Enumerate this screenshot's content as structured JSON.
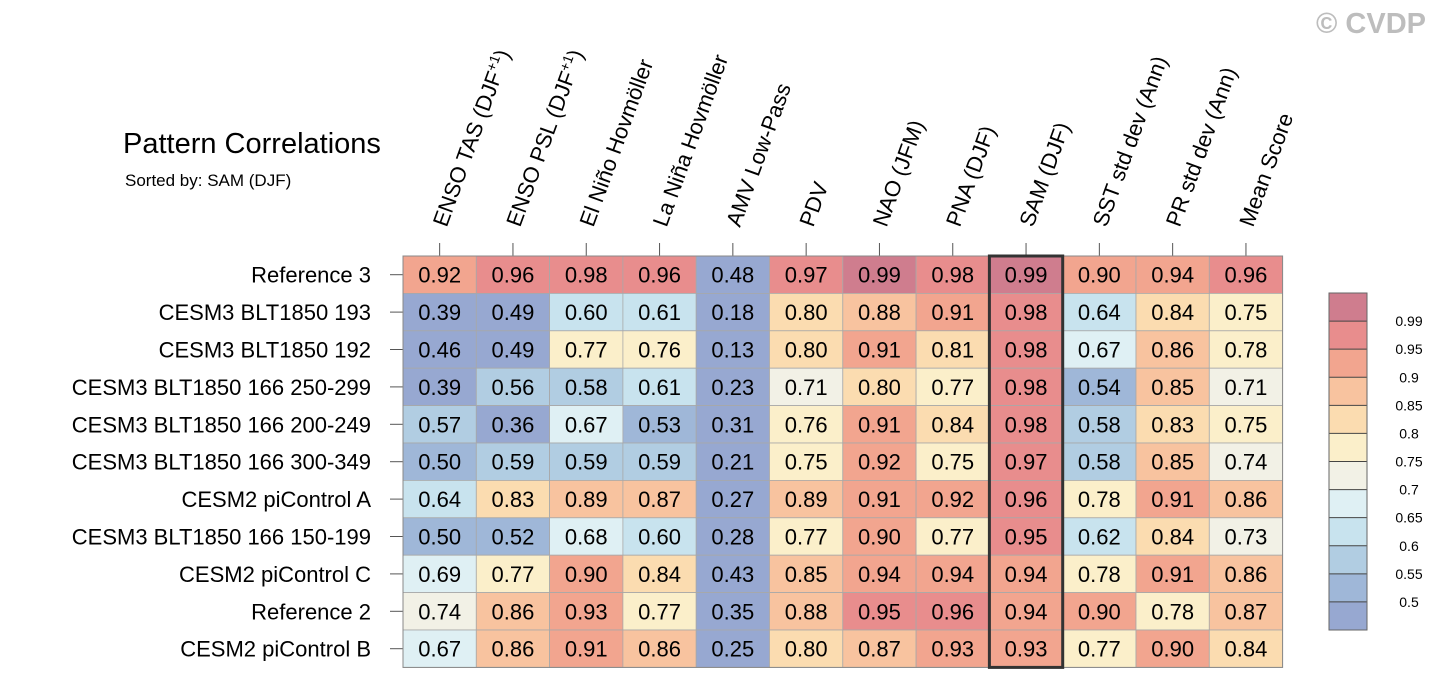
{
  "title": "Pattern Correlations",
  "subtitle": "Sorted by: SAM (DJF)",
  "copyright": "© CVDP",
  "chart_data": {
    "type": "heatmap",
    "title": "Pattern Correlations",
    "subtitle": "Sorted by: SAM (DJF)",
    "columns": [
      "ENSO TAS (DJF+1)",
      "ENSO PSL (DJF+1)",
      "El Niño Hovmöller",
      "La Niña Hovmöller",
      "AMV Low-Pass",
      "PDV",
      "NAO (JFM)",
      "PNA (DJF)",
      "SAM (DJF)",
      "SST std dev (Ann)",
      "PR std dev (Ann)",
      "Mean Score"
    ],
    "highlighted_column": "SAM (DJF)",
    "rows": [
      "Reference 3",
      "CESM3 BLT1850 193",
      "CESM3 BLT1850 192",
      "CESM3 BLT1850 166 250-299",
      "CESM3 BLT1850 166 200-249",
      "CESM3 BLT1850 166 300-349",
      "CESM2 piControl A",
      "CESM3 BLT1850 166 150-199",
      "CESM2 piControl C",
      "Reference 2",
      "CESM2 piControl B"
    ],
    "values": [
      [
        "0.92",
        "0.96",
        "0.98",
        "0.96",
        "0.48",
        "0.97",
        "0.99",
        "0.98",
        "0.99",
        "0.90",
        "0.94",
        "0.96"
      ],
      [
        "0.39",
        "0.49",
        "0.60",
        "0.61",
        "0.18",
        "0.80",
        "0.88",
        "0.91",
        "0.98",
        "0.64",
        "0.84",
        "0.75"
      ],
      [
        "0.46",
        "0.49",
        "0.77",
        "0.76",
        "0.13",
        "0.80",
        "0.91",
        "0.81",
        "0.98",
        "0.67",
        "0.86",
        "0.78"
      ],
      [
        "0.39",
        "0.56",
        "0.58",
        "0.61",
        "0.23",
        "0.71",
        "0.80",
        "0.77",
        "0.98",
        "0.54",
        "0.85",
        "0.71"
      ],
      [
        "0.57",
        "0.36",
        "0.67",
        "0.53",
        "0.31",
        "0.76",
        "0.91",
        "0.84",
        "0.98",
        "0.58",
        "0.83",
        "0.75"
      ],
      [
        "0.50",
        "0.59",
        "0.59",
        "0.59",
        "0.21",
        "0.75",
        "0.92",
        "0.75",
        "0.97",
        "0.58",
        "0.85",
        "0.74"
      ],
      [
        "0.64",
        "0.83",
        "0.89",
        "0.87",
        "0.27",
        "0.89",
        "0.91",
        "0.92",
        "0.96",
        "0.78",
        "0.91",
        "0.86"
      ],
      [
        "0.50",
        "0.52",
        "0.68",
        "0.60",
        "0.28",
        "0.77",
        "0.90",
        "0.77",
        "0.95",
        "0.62",
        "0.84",
        "0.73"
      ],
      [
        "0.69",
        "0.77",
        "0.90",
        "0.84",
        "0.43",
        "0.85",
        "0.94",
        "0.94",
        "0.94",
        "0.78",
        "0.91",
        "0.86"
      ],
      [
        "0.74",
        "0.86",
        "0.93",
        "0.77",
        "0.35",
        "0.88",
        "0.95",
        "0.96",
        "0.94",
        "0.90",
        "0.78",
        "0.87"
      ],
      [
        "0.67",
        "0.86",
        "0.91",
        "0.86",
        "0.25",
        "0.80",
        "0.87",
        "0.93",
        "0.93",
        "0.77",
        "0.90",
        "0.84"
      ]
    ],
    "colorbar": {
      "levels": [
        "0.99",
        "0.95",
        "0.9",
        "0.85",
        "0.8",
        "0.75",
        "0.7",
        "0.65",
        "0.6",
        "0.55",
        "0.5"
      ],
      "colors": [
        "#cf7d8e",
        "#e88d8d",
        "#f2a58f",
        "#f8c39f",
        "#fbdcb0",
        "#fbefca",
        "#f2f1e6",
        "#dff0f4",
        "#c8e3ee",
        "#b1cde2",
        "#9fb7d8",
        "#97a8d1"
      ]
    }
  }
}
